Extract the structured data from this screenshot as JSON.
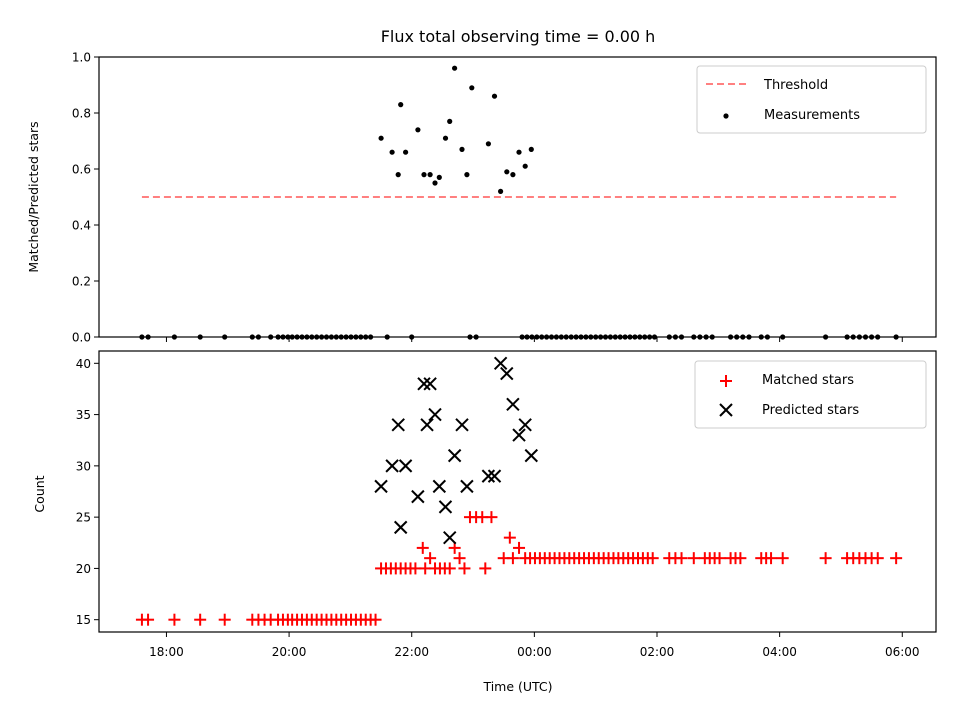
{
  "chart_data": [
    {
      "type": "scatter",
      "title": "Flux total observing time = 0.00 h",
      "xlabel": "",
      "ylabel": "Matched/Predicted stars",
      "xlim_hours": [
        16.9,
        30.55
      ],
      "ylim": [
        0.0,
        1.0
      ],
      "yticks": [
        "0.0",
        "0.2",
        "0.4",
        "0.6",
        "0.8",
        "1.0"
      ],
      "grid": false,
      "legend_position": "top-right",
      "threshold": {
        "name": "Threshold",
        "y": 0.5,
        "x_range_hours": [
          17.6,
          29.9
        ],
        "color": "#ff8080",
        "style": "dashed"
      },
      "series": [
        {
          "name": "Measurements",
          "color": "#000000",
          "marker": "dot",
          "points": [
            [
              17.6,
              0
            ],
            [
              17.7,
              0
            ],
            [
              18.13,
              0
            ],
            [
              18.55,
              0
            ],
            [
              18.95,
              0
            ],
            [
              19.4,
              0
            ],
            [
              19.5,
              0
            ],
            [
              19.7,
              0
            ],
            [
              19.82,
              0
            ],
            [
              19.9,
              0
            ],
            [
              19.98,
              0
            ],
            [
              20.05,
              0
            ],
            [
              20.13,
              0
            ],
            [
              20.21,
              0
            ],
            [
              20.29,
              0
            ],
            [
              20.37,
              0
            ],
            [
              20.45,
              0
            ],
            [
              20.53,
              0
            ],
            [
              20.61,
              0
            ],
            [
              20.69,
              0
            ],
            [
              20.77,
              0
            ],
            [
              20.85,
              0
            ],
            [
              20.93,
              0
            ],
            [
              21.01,
              0
            ],
            [
              21.09,
              0
            ],
            [
              21.17,
              0
            ],
            [
              21.25,
              0
            ],
            [
              21.33,
              0
            ],
            [
              21.6,
              0
            ],
            [
              22.0,
              0
            ],
            [
              22.95,
              0
            ],
            [
              23.05,
              0
            ],
            [
              23.8,
              0
            ],
            [
              23.88,
              0
            ],
            [
              23.96,
              0
            ],
            [
              24.04,
              0
            ],
            [
              24.12,
              0
            ],
            [
              24.2,
              0
            ],
            [
              24.28,
              0
            ],
            [
              24.36,
              0
            ],
            [
              24.44,
              0
            ],
            [
              24.52,
              0
            ],
            [
              24.6,
              0
            ],
            [
              24.68,
              0
            ],
            [
              24.76,
              0
            ],
            [
              24.84,
              0
            ],
            [
              24.92,
              0
            ],
            [
              25.0,
              0
            ],
            [
              25.08,
              0
            ],
            [
              25.16,
              0
            ],
            [
              25.24,
              0
            ],
            [
              25.32,
              0
            ],
            [
              25.4,
              0
            ],
            [
              25.48,
              0
            ],
            [
              25.56,
              0
            ],
            [
              25.64,
              0
            ],
            [
              25.72,
              0
            ],
            [
              25.8,
              0
            ],
            [
              25.88,
              0
            ],
            [
              25.96,
              0
            ],
            [
              26.2,
              0
            ],
            [
              26.3,
              0
            ],
            [
              26.4,
              0
            ],
            [
              26.6,
              0
            ],
            [
              26.7,
              0
            ],
            [
              26.8,
              0
            ],
            [
              26.9,
              0
            ],
            [
              27.2,
              0
            ],
            [
              27.3,
              0
            ],
            [
              27.4,
              0
            ],
            [
              27.5,
              0
            ],
            [
              27.7,
              0
            ],
            [
              27.8,
              0
            ],
            [
              28.05,
              0
            ],
            [
              28.75,
              0
            ],
            [
              29.1,
              0
            ],
            [
              29.2,
              0
            ],
            [
              29.3,
              0
            ],
            [
              29.4,
              0
            ],
            [
              29.5,
              0
            ],
            [
              29.6,
              0
            ],
            [
              29.9,
              0
            ],
            [
              21.5,
              0.71
            ],
            [
              21.68,
              0.66
            ],
            [
              21.78,
              0.58
            ],
            [
              21.82,
              0.83
            ],
            [
              21.9,
              0.66
            ],
            [
              22.1,
              0.74
            ],
            [
              22.2,
              0.58
            ],
            [
              22.3,
              0.58
            ],
            [
              22.38,
              0.55
            ],
            [
              22.45,
              0.57
            ],
            [
              22.55,
              0.71
            ],
            [
              22.62,
              0.77
            ],
            [
              22.7,
              0.96
            ],
            [
              22.82,
              0.67
            ],
            [
              22.9,
              0.58
            ],
            [
              22.98,
              0.89
            ],
            [
              23.25,
              0.69
            ],
            [
              23.35,
              0.86
            ],
            [
              23.45,
              0.52
            ],
            [
              23.55,
              0.59
            ],
            [
              23.65,
              0.58
            ],
            [
              23.75,
              0.66
            ],
            [
              23.85,
              0.61
            ],
            [
              23.95,
              0.67
            ]
          ]
        }
      ]
    },
    {
      "type": "scatter",
      "title": "",
      "xlabel": "Time (UTC)",
      "ylabel": "Count",
      "xlim_hours": [
        16.9,
        30.55
      ],
      "ylim": [
        13.8,
        41.2
      ],
      "xticks": [
        {
          "hours": 18,
          "label": "18:00"
        },
        {
          "hours": 20,
          "label": "20:00"
        },
        {
          "hours": 22,
          "label": "22:00"
        },
        {
          "hours": 24,
          "label": "00:00"
        },
        {
          "hours": 26,
          "label": "02:00"
        },
        {
          "hours": 28,
          "label": "04:00"
        },
        {
          "hours": 30,
          "label": "06:00"
        }
      ],
      "yticks": [
        "15",
        "20",
        "25",
        "30",
        "35",
        "40"
      ],
      "grid": false,
      "legend_position": "top-right",
      "series": [
        {
          "name": "Matched stars",
          "color": "#ff0000",
          "marker": "plus",
          "points": [
            [
              17.6,
              15
            ],
            [
              17.7,
              15
            ],
            [
              18.13,
              15
            ],
            [
              18.55,
              15
            ],
            [
              18.95,
              15
            ],
            [
              19.4,
              15
            ],
            [
              19.5,
              15
            ],
            [
              19.6,
              15
            ],
            [
              19.7,
              15
            ],
            [
              19.82,
              15
            ],
            [
              19.9,
              15
            ],
            [
              19.98,
              15
            ],
            [
              20.05,
              15
            ],
            [
              20.13,
              15
            ],
            [
              20.21,
              15
            ],
            [
              20.29,
              15
            ],
            [
              20.37,
              15
            ],
            [
              20.45,
              15
            ],
            [
              20.53,
              15
            ],
            [
              20.61,
              15
            ],
            [
              20.69,
              15
            ],
            [
              20.77,
              15
            ],
            [
              20.85,
              15
            ],
            [
              20.93,
              15
            ],
            [
              21.01,
              15
            ],
            [
              21.09,
              15
            ],
            [
              21.17,
              15
            ],
            [
              21.25,
              15
            ],
            [
              21.33,
              15
            ],
            [
              21.41,
              15
            ],
            [
              21.5,
              20
            ],
            [
              21.58,
              20
            ],
            [
              21.66,
              20
            ],
            [
              21.74,
              20
            ],
            [
              21.82,
              20
            ],
            [
              21.9,
              20
            ],
            [
              21.98,
              20
            ],
            [
              22.06,
              20
            ],
            [
              22.22,
              20
            ],
            [
              22.38,
              20
            ],
            [
              22.46,
              20
            ],
            [
              22.54,
              20
            ],
            [
              22.62,
              20
            ],
            [
              22.86,
              20
            ],
            [
              23.2,
              20
            ],
            [
              22.18,
              22
            ],
            [
              22.3,
              21
            ],
            [
              22.7,
              22
            ],
            [
              22.78,
              21
            ],
            [
              23.5,
              21
            ],
            [
              23.6,
              23
            ],
            [
              23.75,
              22
            ],
            [
              23.65,
              21
            ],
            [
              22.95,
              25
            ],
            [
              23.05,
              25
            ],
            [
              23.15,
              25
            ],
            [
              23.3,
              25
            ],
            [
              23.85,
              21
            ],
            [
              23.93,
              21
            ],
            [
              24.01,
              21
            ],
            [
              24.09,
              21
            ],
            [
              24.17,
              21
            ],
            [
              24.25,
              21
            ],
            [
              24.33,
              21
            ],
            [
              24.41,
              21
            ],
            [
              24.49,
              21
            ],
            [
              24.57,
              21
            ],
            [
              24.65,
              21
            ],
            [
              24.73,
              21
            ],
            [
              24.81,
              21
            ],
            [
              24.89,
              21
            ],
            [
              24.97,
              21
            ],
            [
              25.05,
              21
            ],
            [
              25.13,
              21
            ],
            [
              25.21,
              21
            ],
            [
              25.29,
              21
            ],
            [
              25.37,
              21
            ],
            [
              25.45,
              21
            ],
            [
              25.53,
              21
            ],
            [
              25.61,
              21
            ],
            [
              25.69,
              21
            ],
            [
              25.77,
              21
            ],
            [
              25.85,
              21
            ],
            [
              25.93,
              21
            ],
            [
              26.2,
              21
            ],
            [
              26.3,
              21
            ],
            [
              26.4,
              21
            ],
            [
              26.6,
              21
            ],
            [
              26.78,
              21
            ],
            [
              26.86,
              21
            ],
            [
              26.94,
              21
            ],
            [
              27.02,
              21
            ],
            [
              27.2,
              21
            ],
            [
              27.28,
              21
            ],
            [
              27.36,
              21
            ],
            [
              27.7,
              21
            ],
            [
              27.78,
              21
            ],
            [
              27.86,
              21
            ],
            [
              28.05,
              21
            ],
            [
              28.75,
              21
            ],
            [
              29.1,
              21
            ],
            [
              29.2,
              21
            ],
            [
              29.3,
              21
            ],
            [
              29.4,
              21
            ],
            [
              29.5,
              21
            ],
            [
              29.6,
              21
            ],
            [
              29.9,
              21
            ]
          ]
        },
        {
          "name": "Predicted stars",
          "color": "#000000",
          "marker": "x",
          "points": [
            [
              21.5,
              28
            ],
            [
              21.68,
              30
            ],
            [
              21.78,
              34
            ],
            [
              21.82,
              24
            ],
            [
              21.9,
              30
            ],
            [
              22.1,
              27
            ],
            [
              22.2,
              38
            ],
            [
              22.25,
              34
            ],
            [
              22.3,
              38
            ],
            [
              22.38,
              35
            ],
            [
              22.45,
              28
            ],
            [
              22.55,
              26
            ],
            [
              22.62,
              23
            ],
            [
              22.7,
              31
            ],
            [
              22.82,
              34
            ],
            [
              22.9,
              28
            ],
            [
              23.25,
              29
            ],
            [
              23.35,
              29
            ],
            [
              23.45,
              40
            ],
            [
              23.55,
              39
            ],
            [
              23.65,
              36
            ],
            [
              23.75,
              33
            ],
            [
              23.85,
              34
            ],
            [
              23.95,
              31
            ]
          ]
        }
      ]
    }
  ]
}
